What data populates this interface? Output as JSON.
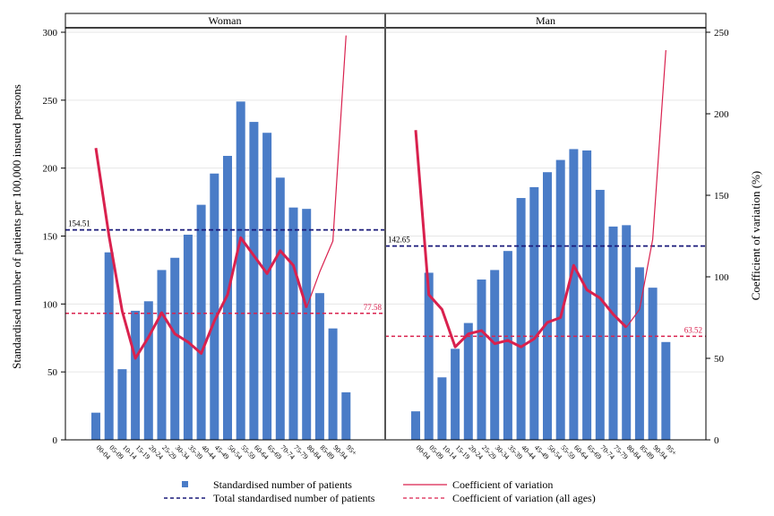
{
  "chart_data": {
    "type": "bar",
    "y_left_label": "Standardised number of patients per 100,000 insured persons",
    "y_right_label": "Coefficient of variation (%)",
    "y_left_ticks": [
      "0",
      "50",
      "100",
      "150",
      "200",
      "250",
      "300"
    ],
    "y_right_ticks": [
      "0",
      "50",
      "100",
      "150",
      "200",
      "250"
    ],
    "ylim_left": [
      0,
      300
    ],
    "ylim_right": [
      0,
      250
    ],
    "grid": true,
    "categories": [
      "00-04",
      "05-09",
      "10-14",
      "15-19",
      "20-24",
      "25-29",
      "30-34",
      "35-39",
      "40-44",
      "45-49",
      "50-54",
      "55-59",
      "60-64",
      "65-69",
      "70-74",
      "75-79",
      "80-84",
      "85-89",
      "90-94",
      "95+"
    ],
    "panels": [
      {
        "title": "Woman",
        "bars": [
          20,
          138,
          52,
          95,
          102,
          125,
          134,
          151,
          173,
          196,
          209,
          249,
          234,
          226,
          193,
          171,
          170,
          108,
          82,
          35
        ],
        "cv": [
          179,
          125,
          79,
          50,
          63,
          78,
          65,
          60,
          53,
          73,
          89,
          124,
          113,
          102,
          116,
          107,
          81,
          103,
          122,
          248
        ],
        "total": 154.51,
        "total_label": "154.51",
        "cv_all": 77.58,
        "cv_all_label": "77.58"
      },
      {
        "title": "Man",
        "bars": [
          21,
          123,
          46,
          67,
          86,
          118,
          125,
          139,
          178,
          186,
          197,
          206,
          214,
          213,
          184,
          157,
          158,
          127,
          112,
          72
        ],
        "cv": [
          190,
          89,
          80,
          57,
          65,
          67,
          59,
          61,
          57,
          62,
          72,
          75,
          107,
          92,
          87,
          77,
          69,
          80,
          123,
          239
        ],
        "total": 142.65,
        "total_label": "142.65",
        "cv_all": 63.52,
        "cv_all_label": "63.52"
      }
    ],
    "legend": {
      "bars": "Standardised number of patients",
      "total": "Total standardised number of patients",
      "cv": "Coefficient of variation",
      "cv_all": "Coefficient of variation (all ages)"
    },
    "colors": {
      "bar": "#4a7cc7",
      "cv": "#d9214e",
      "total": "#1a1a7a",
      "cv_all": "#d9214e",
      "grid": "#e6e6e6"
    }
  }
}
